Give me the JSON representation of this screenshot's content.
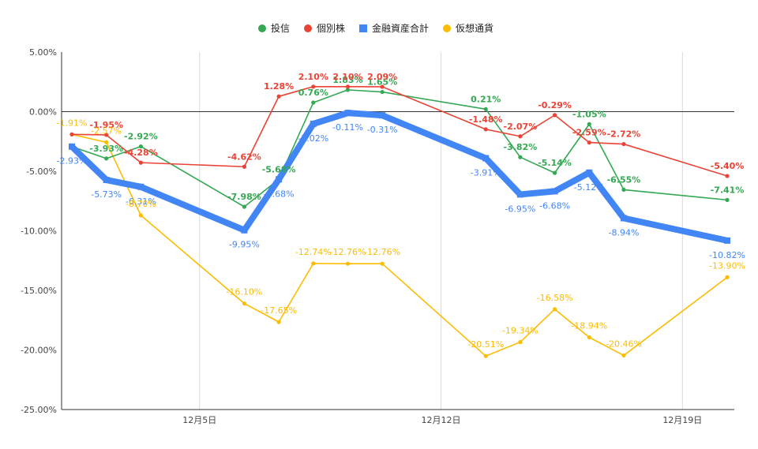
{
  "chart_data": {
    "type": "line",
    "title": "",
    "xlabel": "",
    "ylabel": "",
    "ylim": [
      -25,
      5
    ],
    "yticks": [
      5,
      0,
      -5,
      -10,
      -15,
      -20,
      -25
    ],
    "ytick_labels": [
      "5.00%",
      "0.00%",
      "-5.00%",
      "-10.00%",
      "-15.00%",
      "-20.00%",
      "-25.00%"
    ],
    "xlim": [
      1,
      21
    ],
    "xticks": [
      5,
      12,
      19
    ],
    "xtick_labels": [
      "12月5日",
      "12月12日",
      "12月19日"
    ],
    "grid": {
      "vertical": true,
      "horizontal": false,
      "zero_line": true
    },
    "legend_position": "top-center",
    "series": [
      {
        "name": "投信",
        "color": "#34a853",
        "marker": "circle",
        "bold_labels": true,
        "x": [
          1,
          2,
          3,
          6,
          7,
          8,
          9,
          10,
          13,
          14,
          15,
          16,
          17,
          20
        ],
        "values": [
          -2.93,
          -3.93,
          -2.92,
          -7.98,
          -5.68,
          0.76,
          1.83,
          1.65,
          0.21,
          -3.82,
          -5.14,
          -1.05,
          -6.55,
          -7.41
        ],
        "labels": [
          "",
          "-3.93%",
          "-2.92%",
          "-7.98%",
          "-5.68%",
          "0.76%",
          "1.83%",
          "1.65%",
          "0.21%",
          "-3.82%",
          "-5.14%",
          "-1.05%",
          "-6.55%",
          "-7.41%"
        ]
      },
      {
        "name": "個別株",
        "color": "#ea4335",
        "marker": "circle",
        "bold_labels": true,
        "x": [
          1,
          2,
          3,
          6,
          7,
          8,
          9,
          10,
          13,
          14,
          15,
          16,
          17,
          20
        ],
        "values": [
          -1.91,
          -1.95,
          -4.28,
          -4.62,
          1.28,
          2.1,
          2.1,
          2.09,
          -1.48,
          -2.07,
          -0.29,
          -2.59,
          -2.72,
          -5.4
        ],
        "labels": [
          "",
          "-1.95%",
          "-4.28%",
          "-4.62%",
          "1.28%",
          "2.10%",
          "2.10%",
          "2.09%",
          "-1.48%",
          "-2.07%",
          "-0.29%",
          "-2.59%",
          "-2.72%",
          "-5.40%"
        ]
      },
      {
        "name": "金融資産合計",
        "color": "#4285f4",
        "marker": "square",
        "bold_labels": false,
        "x": [
          1,
          2,
          3,
          6,
          7,
          8,
          9,
          10,
          13,
          14,
          15,
          16,
          17,
          20
        ],
        "values": [
          -2.93,
          -5.73,
          -6.31,
          -9.95,
          -5.68,
          -1.02,
          -0.11,
          -0.31,
          -3.91,
          -6.95,
          -6.68,
          -5.12,
          -8.94,
          -10.82
        ],
        "labels": [
          "-2.93%",
          "-5.73%",
          "-6.31%",
          "-9.95%",
          "-5.68%",
          "-1.02%",
          "-0.11%",
          "-0.31%",
          "-3.91%",
          "-6.95%",
          "-6.68%",
          "-5.12%",
          "-8.94%",
          "-10.82%"
        ]
      },
      {
        "name": "仮想通貨",
        "color": "#fbbc04",
        "marker": "circle",
        "bold_labels": false,
        "x": [
          1,
          2,
          3,
          6,
          7,
          8,
          9,
          10,
          13,
          14,
          15,
          16,
          17,
          20
        ],
        "values": [
          -1.91,
          -2.57,
          -8.7,
          -16.1,
          -17.65,
          -12.74,
          -12.76,
          -12.76,
          -20.51,
          -19.34,
          -16.58,
          -18.94,
          -20.46,
          -13.9
        ],
        "labels": [
          "-1.91%",
          "-2.57%",
          "-8.70%",
          "-16.10%",
          "-17.65%",
          "-12.74%",
          "-12.76%",
          "-12.76%",
          "-20.51%",
          "-19.34%",
          "-16.58%",
          "-18.94%",
          "-20.46%",
          "-13.90%"
        ]
      }
    ]
  }
}
